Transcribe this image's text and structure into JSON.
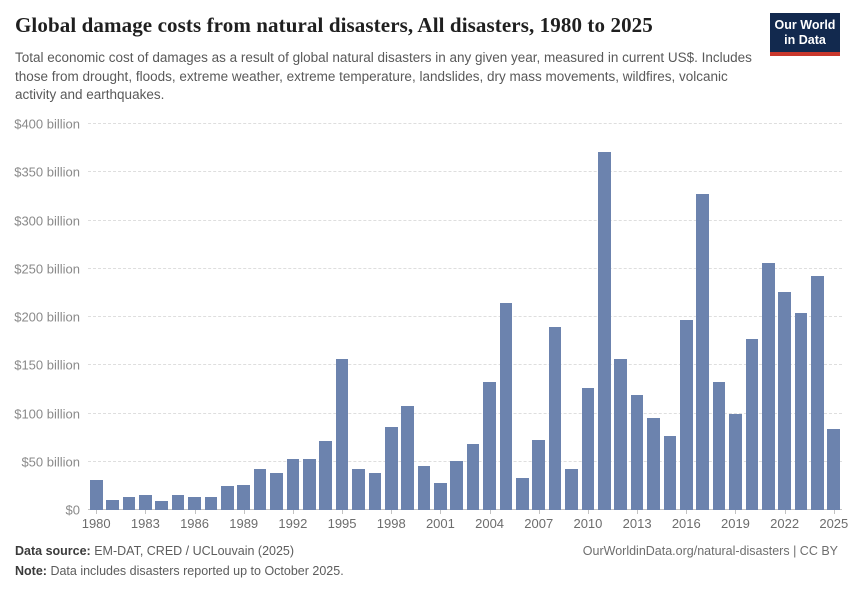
{
  "header": {
    "title": "Global damage costs from natural disasters, All disasters, 1980 to 2025",
    "logo": {
      "line1": "Our World",
      "line2": "in Data",
      "bg_color": "#12294e",
      "stripe_color": "#c9372c"
    }
  },
  "subtitle": "Total economic cost of damages as a result of global natural disasters in any given year, measured in current US$. Includes those from drought, floods, extreme weather, extreme temperature, landslides, dry mass movements, wildfires, volcanic activity and earthquakes.",
  "chart_data": {
    "type": "bar",
    "title": "Global damage costs from natural disasters, All disasters, 1980 to 2025",
    "xlabel": "",
    "ylabel": "",
    "ylim": [
      0,
      400
    ],
    "grid": "horizontal-dashed",
    "legend": "none",
    "bar_color": "#6c83ae",
    "x": [
      1980,
      1981,
      1982,
      1983,
      1984,
      1985,
      1986,
      1987,
      1988,
      1989,
      1990,
      1991,
      1992,
      1993,
      1994,
      1995,
      1996,
      1997,
      1998,
      1999,
      2000,
      2001,
      2002,
      2003,
      2004,
      2005,
      2006,
      2007,
      2008,
      2009,
      2010,
      2011,
      2012,
      2013,
      2014,
      2015,
      2016,
      2017,
      2018,
      2019,
      2020,
      2021,
      2022,
      2023,
      2024,
      2025
    ],
    "values": [
      31,
      10,
      13,
      16,
      9,
      16,
      13,
      14,
      25,
      26,
      42,
      38,
      53,
      53,
      72,
      156,
      42,
      38,
      86,
      108,
      46,
      28,
      51,
      68,
      133,
      215,
      33,
      73,
      190,
      43,
      126,
      371,
      157,
      119,
      95,
      77,
      197,
      327,
      133,
      99,
      177,
      256,
      226,
      204,
      242,
      84
    ],
    "value_unit": "US$ billion",
    "yticks": [
      {
        "value": 0,
        "label": "$0"
      },
      {
        "value": 50,
        "label": "$50 billion"
      },
      {
        "value": 100,
        "label": "$100 billion"
      },
      {
        "value": 150,
        "label": "$150 billion"
      },
      {
        "value": 200,
        "label": "$200 billion"
      },
      {
        "value": 250,
        "label": "$250 billion"
      },
      {
        "value": 300,
        "label": "$300 billion"
      },
      {
        "value": 350,
        "label": "$350 billion"
      },
      {
        "value": 400,
        "label": "$400 billion"
      }
    ],
    "xticks": [
      1980,
      1983,
      1986,
      1989,
      1992,
      1995,
      1998,
      2001,
      2004,
      2007,
      2010,
      2013,
      2016,
      2019,
      2022,
      2025
    ]
  },
  "footer": {
    "datasource_label": "Data source:",
    "datasource_value": "EM-DAT, CRED / UCLouvain (2025)",
    "note_label": "Note:",
    "note_value": "Data includes disasters reported up to October 2025.",
    "link": "OurWorldinData.org/natural-disasters | CC BY"
  }
}
